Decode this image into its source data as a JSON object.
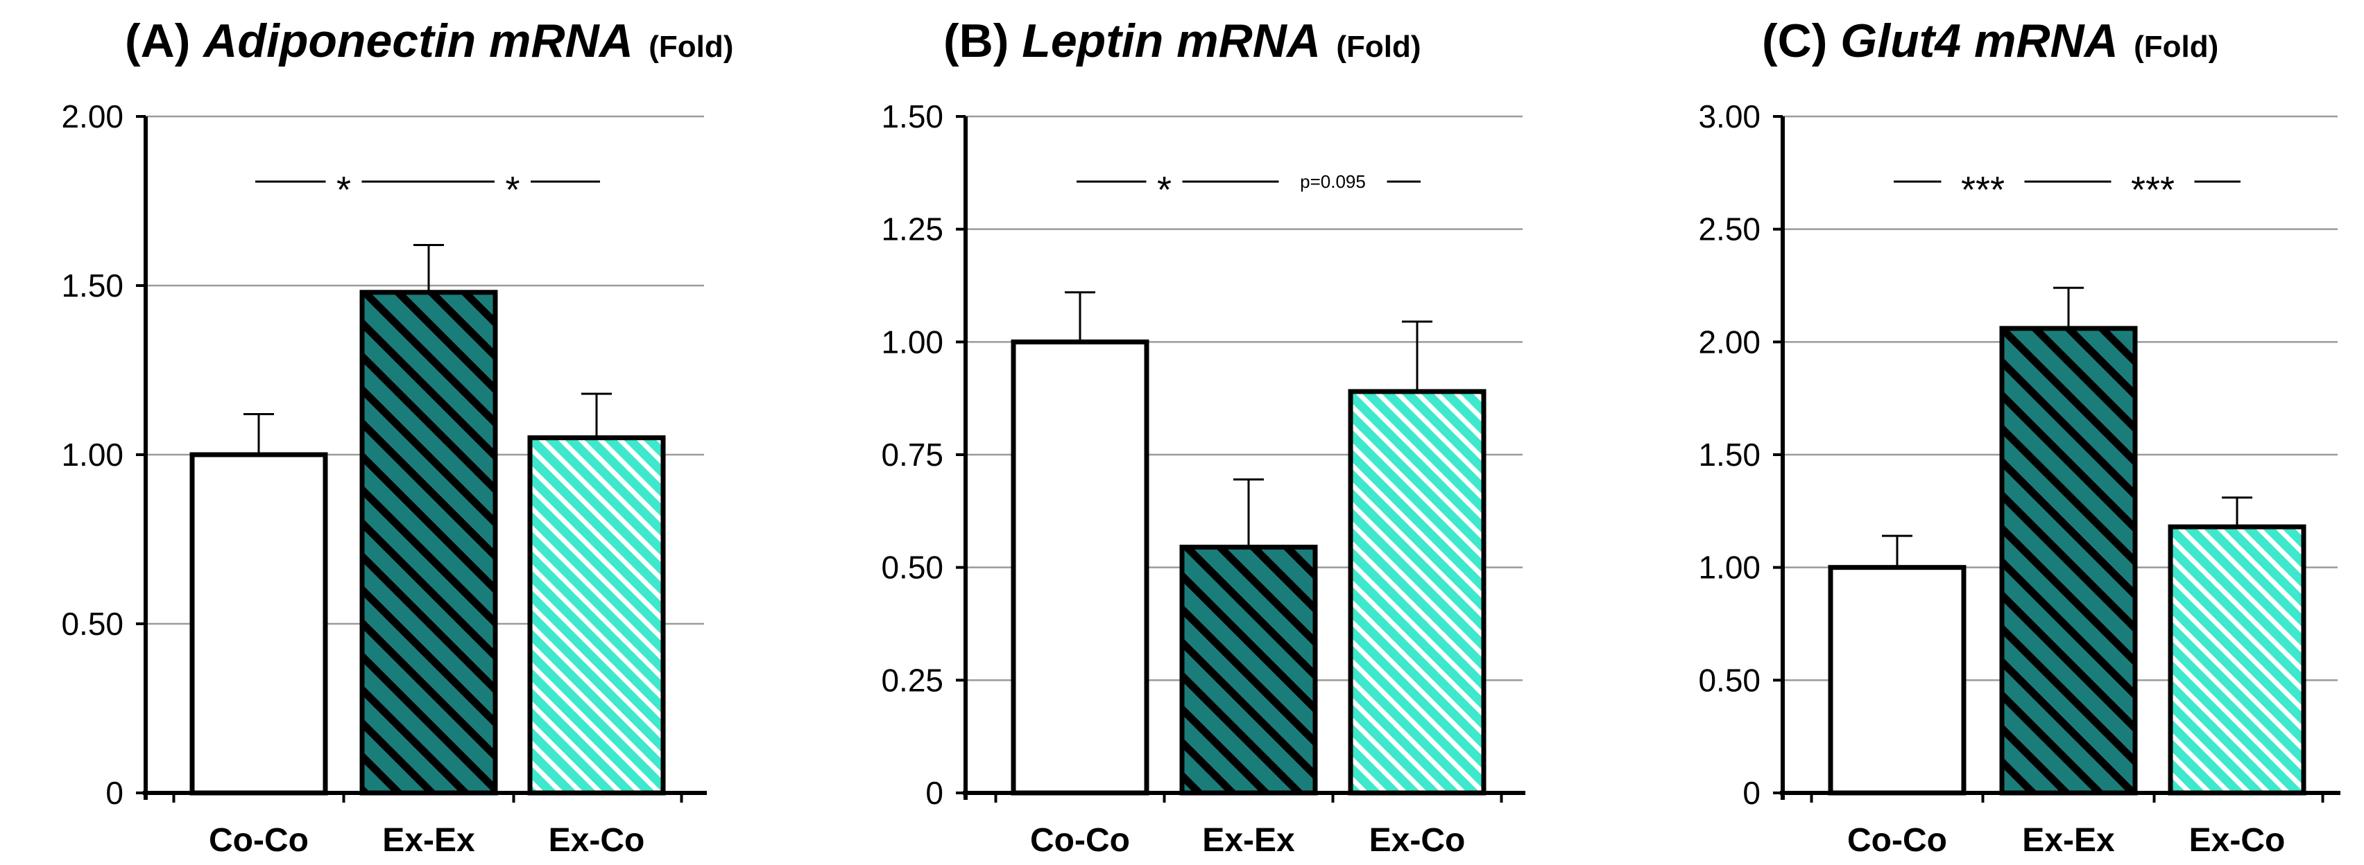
{
  "colors": {
    "bar_outline": "#000000",
    "co_co_fill": "#ffffff",
    "ex_ex_fill": "#1b7d7a",
    "ex_ex_stripe": "#000000",
    "ex_co_fill": "#3ee8cc",
    "ex_co_stripe": "#ffffff",
    "gridline": "#9a9a9a"
  },
  "chart_data": [
    {
      "type": "bar",
      "panel": "A",
      "title": {
        "prefix": "(A)",
        "gene": "Adiponectin mRNA",
        "unit": "(Fold)"
      },
      "categories": [
        "Co-Co",
        "Ex-Ex",
        "Ex-Co"
      ],
      "values": [
        1.0,
        1.48,
        1.05
      ],
      "errors": [
        0.12,
        0.14,
        0.13
      ],
      "ylim": [
        0,
        2.0
      ],
      "yticks": [
        0,
        0.5,
        1.0,
        1.5,
        2.0
      ],
      "ytick_labels": [
        "0",
        "0.50",
        "1.00",
        "1.50",
        "2.00"
      ],
      "xlabel": "",
      "ylabel": "",
      "grid": true,
      "annotations": [
        {
          "from": "Co-Co",
          "to": "Ex-Ex",
          "text": "*"
        },
        {
          "from": "Ex-Ex",
          "to": "Ex-Co",
          "text": "*"
        }
      ]
    },
    {
      "type": "bar",
      "panel": "B",
      "title": {
        "prefix": "(B)",
        "gene": "Leptin mRNA",
        "unit": "(Fold)"
      },
      "categories": [
        "Co-Co",
        "Ex-Ex",
        "Ex-Co"
      ],
      "values": [
        1.0,
        0.545,
        0.89
      ],
      "errors": [
        0.11,
        0.15,
        0.155
      ],
      "ylim": [
        0,
        1.5
      ],
      "yticks": [
        0,
        0.25,
        0.5,
        0.75,
        1.0,
        1.25,
        1.5
      ],
      "ytick_labels": [
        "0",
        "0.25",
        "0.50",
        "0.75",
        "1.00",
        "1.25",
        "1.50"
      ],
      "xlabel": "",
      "ylabel": "",
      "grid": true,
      "annotations": [
        {
          "from": "Co-Co",
          "to": "Ex-Ex",
          "text": "*"
        },
        {
          "from": "Ex-Ex",
          "to": "Ex-Co",
          "text": "p=0.095"
        }
      ]
    },
    {
      "type": "bar",
      "panel": "C",
      "title": {
        "prefix": "(C)",
        "gene": "Glut4 mRNA",
        "unit": "(Fold)"
      },
      "categories": [
        "Co-Co",
        "Ex-Ex",
        "Ex-Co"
      ],
      "values": [
        1.0,
        2.06,
        1.18
      ],
      "errors": [
        0.14,
        0.18,
        0.13
      ],
      "ylim": [
        0,
        3.0
      ],
      "yticks": [
        0,
        0.5,
        1.0,
        1.5,
        2.0,
        2.5,
        3.0
      ],
      "ytick_labels": [
        "0",
        "0.50",
        "1.00",
        "1.50",
        "2.00",
        "2.50",
        "3.00"
      ],
      "xlabel": "",
      "ylabel": "",
      "grid": true,
      "annotations": [
        {
          "from": "Co-Co",
          "to": "Ex-Ex",
          "text": "***"
        },
        {
          "from": "Ex-Ex",
          "to": "Ex-Co",
          "text": "***"
        }
      ]
    }
  ]
}
